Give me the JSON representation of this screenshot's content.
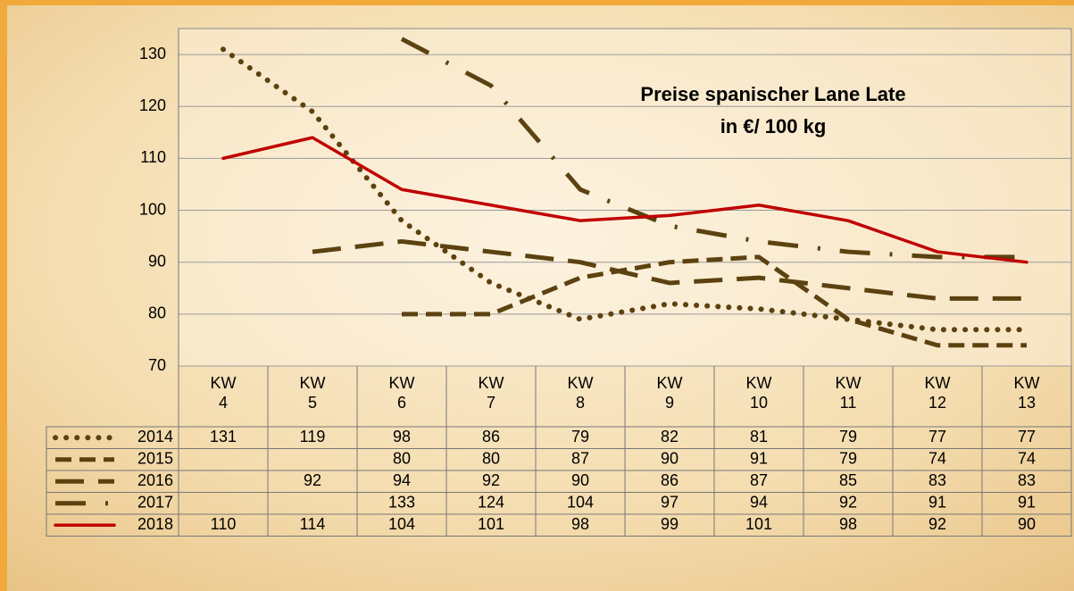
{
  "chart_data": {
    "type": "line",
    "title": "Preise spanischer Lane Late",
    "subtitle": "in €/ 100 kg",
    "categories": [
      "KW 4",
      "KW 5",
      "KW 6",
      "KW 7",
      "KW 8",
      "KW 9",
      "KW 10",
      "KW 11",
      "KW 12",
      "KW 13"
    ],
    "ylim": [
      70,
      135
    ],
    "yticks": [
      70,
      80,
      90,
      100,
      110,
      120,
      130
    ],
    "grid": true,
    "series": [
      {
        "name": "2014",
        "color": "#5c4210",
        "dash": "dotted",
        "values": [
          131,
          119,
          98,
          86,
          79,
          82,
          81,
          79,
          77,
          77
        ]
      },
      {
        "name": "2015",
        "color": "#5c4210",
        "dash": "dashed",
        "values": [
          null,
          null,
          80,
          80,
          87,
          90,
          91,
          79,
          74,
          74
        ]
      },
      {
        "name": "2016",
        "color": "#5c4210",
        "dash": "long-dashed",
        "values": [
          null,
          92,
          94,
          92,
          90,
          86,
          87,
          85,
          83,
          83
        ]
      },
      {
        "name": "2017",
        "color": "#5c4210",
        "dash": "dash-dot",
        "values": [
          null,
          null,
          133,
          124,
          104,
          97,
          94,
          92,
          91,
          91
        ]
      },
      {
        "name": "2018",
        "color": "#c00000",
        "dash": "solid",
        "values": [
          110,
          114,
          104,
          101,
          98,
          99,
          101,
          98,
          92,
          90
        ]
      }
    ]
  }
}
